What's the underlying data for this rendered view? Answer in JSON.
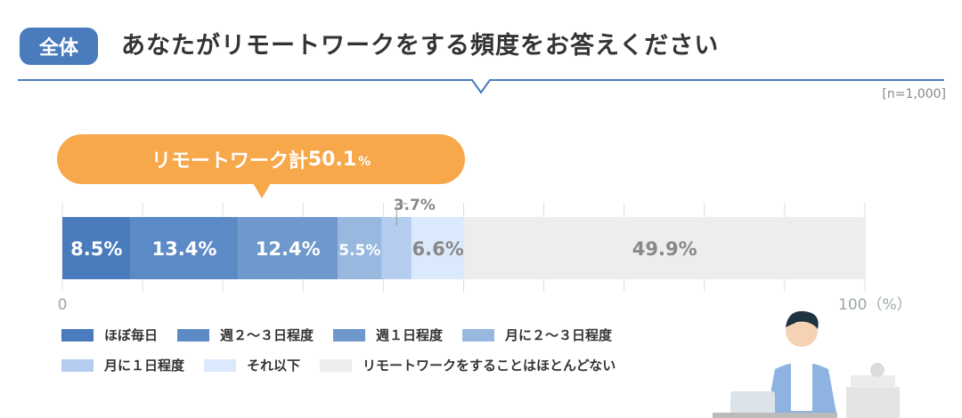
{
  "header": {
    "badge": "全体",
    "title": "あなたがリモートワークをする頻度をお答えください",
    "sample": "[n=1,000]"
  },
  "callout": {
    "label": "リモートワーク計 ",
    "value": "50.1",
    "unit": "%"
  },
  "chart_data": {
    "type": "bar",
    "orientation": "horizontal-stacked",
    "title": "あなたがリモートワークをする頻度をお答えください",
    "categories": [
      "全体"
    ],
    "series": [
      {
        "name": "ほぼ毎日",
        "values": [
          8.5
        ],
        "color": "#4a7bbd",
        "label": "8.5%"
      },
      {
        "name": "週２〜３日程度",
        "values": [
          13.4
        ],
        "color": "#5c8ac6",
        "label": "13.4%"
      },
      {
        "name": "週１日程度",
        "values": [
          12.4
        ],
        "color": "#6f98cc",
        "label": "12.4%"
      },
      {
        "name": "月に２〜３日程度",
        "values": [
          5.5
        ],
        "color": "#98b8e0",
        "label": "5.5%"
      },
      {
        "name": "月に１日程度",
        "values": [
          3.7
        ],
        "color": "#b4cdee",
        "label": "3.7%"
      },
      {
        "name": "それ以下",
        "values": [
          6.6
        ],
        "color": "#dbe9fc",
        "label": "6.6%"
      },
      {
        "name": "リモートワークをすることはほとんどない",
        "values": [
          49.9
        ],
        "color": "#ededed",
        "label": "49.9%"
      }
    ],
    "xlim": [
      0,
      100
    ],
    "xticks": [
      "0",
      "100（%）"
    ],
    "grid": true,
    "legend": "bottom"
  }
}
